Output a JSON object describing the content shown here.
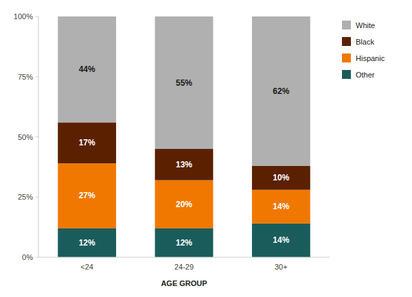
{
  "chart_data": {
    "type": "bar",
    "stacked": true,
    "categories": [
      "<24",
      "24-29",
      "30+"
    ],
    "series": [
      {
        "name": "Other",
        "color": "#1a5c5c",
        "values": [
          12,
          12,
          14
        ],
        "value_labels": [
          "12%",
          "12%",
          "14%"
        ]
      },
      {
        "name": "Hispanic",
        "color": "#f07800",
        "values": [
          27,
          20,
          14
        ],
        "value_labels": [
          "27%",
          "20%",
          "14%"
        ]
      },
      {
        "name": "Black",
        "color": "#5a2000",
        "values": [
          17,
          13,
          10
        ],
        "value_labels": [
          "17%",
          "13%",
          "10%"
        ]
      },
      {
        "name": "White",
        "color": "#b0b0b0",
        "values": [
          44,
          55,
          62
        ],
        "value_labels": [
          "44%",
          "55%",
          "62%"
        ]
      }
    ],
    "xlabel": "AGE GROUP",
    "ylim": [
      0,
      100
    ],
    "yticks": [
      {
        "value": 0,
        "label": "0%"
      },
      {
        "value": 25,
        "label": "25%"
      },
      {
        "value": 50,
        "label": "50%"
      },
      {
        "value": 75,
        "label": "75%"
      },
      {
        "value": 100,
        "label": "100%"
      }
    ],
    "data_labels": true,
    "grid": false,
    "legend": "right"
  }
}
